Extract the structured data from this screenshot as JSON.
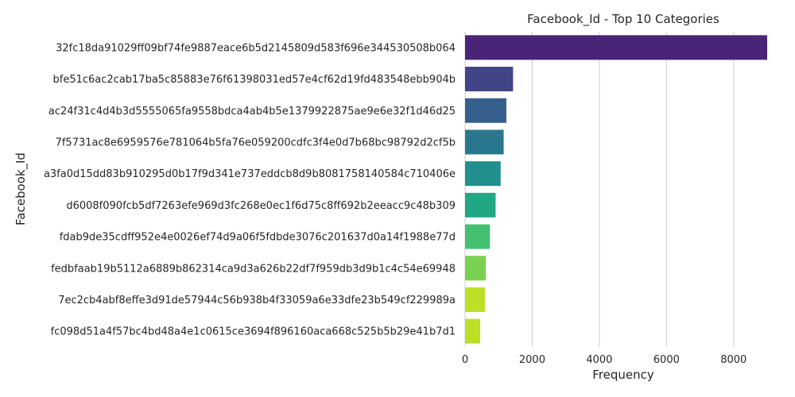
{
  "chart_data": {
    "type": "bar",
    "orientation": "horizontal",
    "title": "Facebook_Id - Top 10 Categories",
    "xlabel": "Frequency",
    "ylabel": "Facebook_Id",
    "xlim": [
      0,
      9450
    ],
    "xticks": [
      0,
      2000,
      4000,
      6000,
      8000
    ],
    "xtick_labels": [
      "0",
      "2000",
      "4000",
      "6000",
      "8000"
    ],
    "grid": "vertical",
    "categories": [
      "32fc18da91029ff09bf74fe9887eace6b5d2145809d583f696e344530508b064",
      "bfe51c6ac2cab17ba5c85883e76f61398031ed57e4cf62d19fd483548ebb904b",
      "ac24f31c4d4b3d5555065fa9558bdca4ab4b5e1379922875ae9e6e32f1d46d25",
      "7f5731ac8e6959576e781064b5fa76e059200cdfc3f4e0d7b68bc98792d2cf5b",
      "a3fa0d15dd83b910295d0b17f9d341e737eddcb8d9b8081758140584c710406e",
      "d6008f090fcb5df7263efe969d3fc268e0ec1f6d75c8ff692b2eeacc9c48b309",
      "fdab9de35cdff952e4e0026ef74d9a06f5fdbde3076c201637d0a14f1988e77d",
      "fedbfaab19b5112a6889b862314ca9d3a626b22df7f959db3d9b1c4c54e69948",
      "7ec2cb4abf8effe3d91de57944c56b938b4f33059a6e33dfe23b549cf229989a",
      "fc098d51a4f57bc4bd48a4e1c0615ce3694f896160aca668c525b5b29e41b7d1"
    ],
    "values": [
      9000,
      1430,
      1230,
      1150,
      1060,
      910,
      740,
      620,
      590,
      450
    ],
    "colors": [
      "#482576",
      "#414487",
      "#35608d",
      "#2a788e",
      "#21908d",
      "#22a785",
      "#43bf71",
      "#7ad151",
      "#bddf26",
      "#bddf26"
    ]
  }
}
